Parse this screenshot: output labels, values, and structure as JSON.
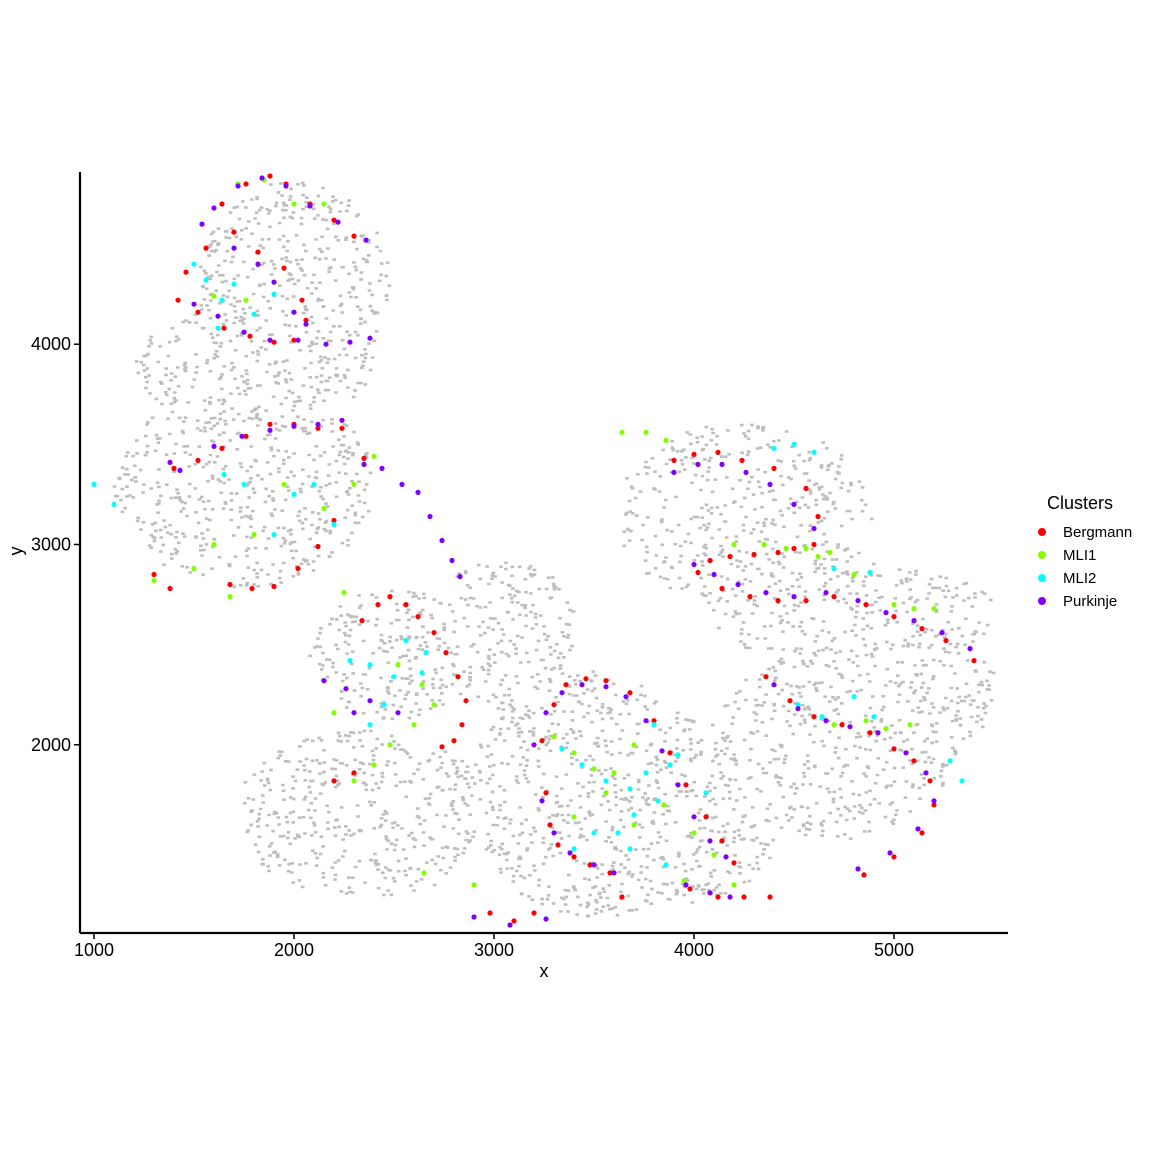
{
  "chart_data": {
    "type": "scatter",
    "title": "",
    "xlabel": "x",
    "ylabel": "y",
    "xlim": [
      930,
      5570
    ],
    "ylim": [
      1060,
      4860
    ],
    "xticks": [
      1000,
      2000,
      3000,
      4000,
      5000
    ],
    "yticks": [
      2000,
      3000,
      4000
    ],
    "grid": false,
    "legend": {
      "title": "Clusters",
      "position": "right",
      "entries": [
        "Bergmann",
        "MLI1",
        "MLI2",
        "Purkinje"
      ]
    },
    "background_color": "#bebebe",
    "colors": {
      "Bergmann": "#ff0000",
      "MLI1": "#80ff00",
      "MLI2": "#00ffff",
      "Purkinje": "#8000ff"
    },
    "series": [
      {
        "name": "Bergmann",
        "x": [
          1640,
          1760,
          1880,
          1960,
          2080,
          2200,
          2300,
          1460,
          1560,
          1700,
          1820,
          1950,
          2040,
          1420,
          1520,
          1650,
          1780,
          1900,
          2000,
          2060,
          1400,
          1520,
          1640,
          1760,
          1880,
          2000,
          2120,
          2240,
          2350,
          2200,
          2120,
          2020,
          1900,
          1790,
          1680,
          1300,
          1380,
          2340,
          2420,
          2480,
          2560,
          2620,
          2700,
          2760,
          2820,
          2860,
          2840,
          2800,
          2740,
          2200,
          2300,
          3240,
          3300,
          3360,
          3460,
          3560,
          3680,
          3800,
          3880,
          3960,
          4060,
          4140,
          4200,
          3260,
          3280,
          3320,
          3400,
          3480,
          3580,
          3640,
          3980,
          4120,
          4250,
          4380,
          3900,
          4000,
          4120,
          4240,
          4400,
          4560,
          4620,
          4600,
          4500,
          4420,
          4300,
          4180,
          4080,
          4020,
          4140,
          4280,
          4420,
          4560,
          4700,
          4860,
          5000,
          5140,
          5260,
          5400,
          4360,
          4480,
          4600,
          4740,
          4880,
          5000,
          5100,
          5180,
          5200,
          5140,
          5000,
          4850,
          2980,
          3100,
          3200
        ],
        "y": [
          4700,
          4800,
          4840,
          4800,
          4700,
          4620,
          4540,
          4360,
          4480,
          4560,
          4460,
          4380,
          4220,
          4220,
          4160,
          4080,
          4040,
          4010,
          4020,
          4120,
          3380,
          3420,
          3480,
          3540,
          3600,
          3600,
          3580,
          3580,
          3430,
          3120,
          2990,
          2880,
          2790,
          2780,
          2800,
          2850,
          2780,
          2620,
          2700,
          2740,
          2700,
          2640,
          2560,
          2460,
          2340,
          2220,
          2100,
          2020,
          1990,
          1820,
          1860,
          2020,
          2200,
          2300,
          2330,
          2320,
          2260,
          2120,
          1960,
          1800,
          1640,
          1520,
          1410,
          1760,
          1600,
          1500,
          1440,
          1400,
          1360,
          1240,
          1280,
          1240,
          1240,
          1240,
          3420,
          3450,
          3460,
          3420,
          3380,
          3280,
          3140,
          3000,
          2980,
          2960,
          2950,
          2940,
          2920,
          2860,
          2780,
          2740,
          2720,
          2720,
          2740,
          2700,
          2640,
          2580,
          2520,
          2420,
          2340,
          2220,
          2140,
          2100,
          2060,
          1980,
          1920,
          1820,
          1700,
          1560,
          1440,
          1350,
          1160,
          1120,
          1160
        ]
      },
      {
        "name": "MLI1",
        "x": [
          1720,
          1850,
          2000,
          2150,
          1600,
          1760,
          2400,
          1950,
          2150,
          2300,
          1800,
          1600,
          1500,
          1300,
          2250,
          1680,
          2520,
          2640,
          2700,
          2600,
          2480,
          2400,
          2300,
          2200,
          3300,
          3400,
          3500,
          3600,
          3700,
          3560,
          3400,
          3700,
          3850,
          4000,
          4100,
          3950,
          4200,
          3640,
          3760,
          3860,
          4200,
          4350,
          4460,
          4560,
          4620,
          4680,
          4800,
          5000,
          5100,
          5200,
          4700,
          4860,
          4960,
          5080,
          2650,
          2900
        ],
        "y": [
          4800,
          4820,
          4700,
          4700,
          4240,
          4220,
          3440,
          3300,
          3180,
          3300,
          3050,
          3000,
          2880,
          2820,
          2760,
          2740,
          2400,
          2300,
          2200,
          2100,
          2000,
          1900,
          1820,
          2160,
          2040,
          1960,
          1880,
          1860,
          2000,
          1760,
          1640,
          1600,
          1700,
          1560,
          1450,
          1320,
          1300,
          3560,
          3560,
          3520,
          3000,
          3000,
          2980,
          2980,
          2940,
          2960,
          2850,
          2700,
          2680,
          2680,
          2100,
          2120,
          2080,
          2100,
          1360,
          1300
        ]
      },
      {
        "name": "MLI2",
        "x": [
          1500,
          1640,
          1800,
          1900,
          1700,
          1560,
          1620,
          2000,
          2100,
          2200,
          1900,
          1750,
          1650,
          1000,
          1100,
          2380,
          2560,
          2660,
          2640,
          2500,
          2450,
          2380,
          2280,
          3340,
          3440,
          3560,
          3680,
          3760,
          3880,
          3820,
          3700,
          3620,
          3500,
          3400,
          3680,
          3860,
          4060,
          3920,
          3800,
          4400,
          4500,
          4600,
          4700,
          4880,
          4520,
          4640,
          4800,
          4900,
          5280,
          5340
        ],
        "y": [
          4400,
          4220,
          4150,
          4250,
          4300,
          4320,
          4080,
          3250,
          3300,
          3100,
          3050,
          3300,
          3350,
          3300,
          3200,
          2400,
          2520,
          2460,
          2360,
          2340,
          2200,
          2100,
          2420,
          1980,
          1900,
          1820,
          1780,
          1860,
          1900,
          1720,
          1650,
          1560,
          1560,
          1480,
          1480,
          1400,
          1760,
          1950,
          2100,
          3480,
          3500,
          3460,
          2880,
          2860,
          2200,
          2140,
          2240,
          2140,
          1920,
          1820
        ]
      },
      {
        "name": "Purkinje",
        "x": [
          1600,
          1720,
          1840,
          1960,
          2080,
          2220,
          2360,
          1540,
          1700,
          1820,
          1900,
          2000,
          2060,
          1500,
          1620,
          1750,
          1880,
          2020,
          2160,
          2280,
          2380,
          2240,
          2120,
          2000,
          1880,
          1740,
          1600,
          1430,
          1380,
          2350,
          2440,
          2540,
          2620,
          2680,
          2740,
          2790,
          2830,
          2150,
          2260,
          2380,
          2520,
          2300,
          3200,
          3260,
          3340,
          3440,
          3560,
          3660,
          3760,
          3840,
          3920,
          4000,
          4080,
          4160,
          3240,
          3300,
          3380,
          3500,
          3600,
          3960,
          4080,
          4180,
          3900,
          4020,
          4140,
          4260,
          4380,
          4500,
          4600,
          4000,
          4100,
          4220,
          4360,
          4500,
          4660,
          4820,
          4960,
          5100,
          5240,
          5380,
          4400,
          4520,
          4660,
          4780,
          4920,
          5060,
          5160,
          5200,
          5120,
          4980,
          4820,
          2900,
          3080,
          3260
        ],
        "y": [
          4680,
          4790,
          4830,
          4790,
          4690,
          4610,
          4520,
          4600,
          4480,
          4400,
          4310,
          4160,
          4100,
          4200,
          4140,
          4060,
          4020,
          4020,
          4000,
          4010,
          4030,
          3620,
          3600,
          3590,
          3570,
          3540,
          3490,
          3370,
          3410,
          3400,
          3380,
          3300,
          3260,
          3140,
          3020,
          2920,
          2840,
          2320,
          2280,
          2220,
          2160,
          2160,
          2000,
          2160,
          2260,
          2300,
          2290,
          2240,
          2120,
          1970,
          1800,
          1640,
          1520,
          1440,
          1720,
          1560,
          1460,
          1400,
          1360,
          1300,
          1260,
          1240,
          3360,
          3400,
          3400,
          3360,
          3300,
          3200,
          3080,
          2900,
          2850,
          2800,
          2760,
          2740,
          2760,
          2720,
          2660,
          2620,
          2560,
          2480,
          2300,
          2180,
          2120,
          2090,
          2060,
          1960,
          1860,
          1720,
          1580,
          1460,
          1380,
          1140,
          1100,
          1130
        ]
      }
    ]
  }
}
